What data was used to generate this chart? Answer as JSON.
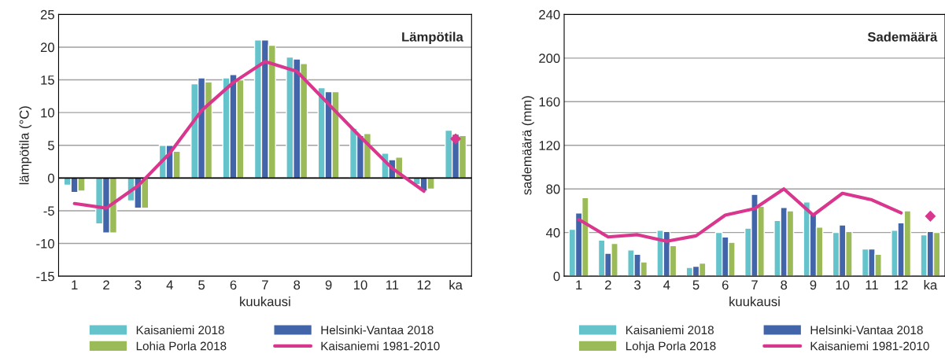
{
  "chart_data": [
    {
      "type": "bar",
      "title": "Lämpötila",
      "xlabel": "kuukausi",
      "ylabel": "lämpötila (°C)",
      "categories": [
        "1",
        "2",
        "3",
        "4",
        "5",
        "6",
        "7",
        "8",
        "9",
        "10",
        "11",
        "12",
        "ka"
      ],
      "ylim": [
        -15,
        25
      ],
      "yticks": [
        -15,
        -10,
        -5,
        0,
        5,
        10,
        15,
        20,
        25
      ],
      "grid": "y",
      "legend": "bottom",
      "series": [
        {
          "name": "Kaisaniemi 2018",
          "color": "#64c3cb",
          "values": [
            -1.1,
            -7.0,
            -3.5,
            5.0,
            14.4,
            15.3,
            21.1,
            18.5,
            13.8,
            7.6,
            3.8,
            -1.0,
            7.3
          ]
        },
        {
          "name": "Helsinki-Vantaa 2018",
          "color": "#4264a8",
          "values": [
            -2.2,
            -8.4,
            -4.6,
            5.0,
            15.3,
            15.8,
            21.1,
            18.2,
            13.2,
            6.5,
            2.8,
            -2.0,
            6.7
          ]
        },
        {
          "name": "Lohia Porla 2018",
          "color": "#9bbb59",
          "values": [
            -2.0,
            -8.4,
            -4.6,
            4.1,
            14.7,
            15.0,
            20.3,
            17.5,
            13.2,
            6.8,
            3.2,
            -1.7,
            6.5
          ]
        },
        {
          "name": "Kaisaniemi 1981-2010",
          "type": "line",
          "color": "#d9378e",
          "marker": "none",
          "values": [
            -3.9,
            -4.6,
            -1.2,
            3.8,
            10.3,
            14.6,
            17.8,
            16.3,
            11.3,
            6.3,
            1.5,
            -2.0,
            null
          ]
        },
        {
          "type": "scatter",
          "color": "#d9378e",
          "marker": "diamond",
          "x": [
            "ka"
          ],
          "values": [
            6.0
          ]
        }
      ]
    },
    {
      "type": "bar",
      "title": "Sademäärä",
      "xlabel": "kuukausi",
      "ylabel": "sademäärä (mm)",
      "categories": [
        "1",
        "2",
        "3",
        "4",
        "5",
        "6",
        "7",
        "8",
        "9",
        "10",
        "11",
        "12",
        "ka"
      ],
      "ylim": [
        0,
        240
      ],
      "yticks": [
        0,
        40,
        80,
        120,
        160,
        200,
        240
      ],
      "grid": "y",
      "legend": "bottom",
      "series": [
        {
          "name": "Kaisaniemi 2018",
          "color": "#64c3cb",
          "values": [
            43,
            33,
            24,
            42,
            8,
            40,
            44,
            51,
            68,
            40,
            25,
            42,
            38
          ]
        },
        {
          "name": "Helsinki-Vantaa 2018",
          "color": "#4264a8",
          "values": [
            58,
            21,
            20,
            41,
            9,
            36,
            75,
            63,
            57,
            47,
            25,
            49,
            41
          ]
        },
        {
          "name": "Lohja Porla 2018",
          "color": "#9bbb59",
          "values": [
            72,
            30,
            13,
            28,
            12,
            31,
            64,
            60,
            45,
            41,
            20,
            60,
            40
          ]
        },
        {
          "name": "Kaisaniemi 1981-2010",
          "type": "line",
          "color": "#d9378e",
          "marker": "none",
          "values": [
            52,
            36,
            38,
            32,
            37,
            56,
            62,
            80,
            56,
            76,
            70,
            58,
            null
          ]
        },
        {
          "type": "scatter",
          "color": "#d9378e",
          "marker": "diamond",
          "x": [
            "ka"
          ],
          "values": [
            55
          ]
        }
      ]
    }
  ]
}
